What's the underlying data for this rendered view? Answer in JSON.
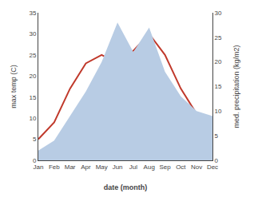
{
  "chart_data": {
    "type": "line",
    "categories": [
      "Jan",
      "Feb",
      "Mar",
      "Apr",
      "May",
      "Jun",
      "Jul",
      "Aug",
      "Sep",
      "Oct",
      "Nov",
      "Dec"
    ],
    "series": [
      {
        "type": "line",
        "color": "#c0392b",
        "values": [
          5,
          9,
          17,
          23,
          25,
          23,
          26,
          30,
          25,
          17,
          11,
          7
        ]
      },
      {
        "type": "area",
        "color": "#b8cce4",
        "axis": "y2",
        "values": [
          2,
          4,
          9,
          14,
          20,
          28,
          22,
          27,
          18,
          13,
          10,
          9
        ]
      }
    ],
    "xlabel": "date (month)",
    "ylabel": "max temp (C)",
    "y2label": "med. precipitation (kg/m2)",
    "ylim": [
      0,
      35
    ],
    "yticks": [
      0,
      5,
      10,
      15,
      20,
      25,
      30,
      35
    ],
    "y2lim": [
      0,
      30
    ],
    "y2ticks": [
      0,
      5,
      10,
      15,
      20,
      25,
      30
    ],
    "grid": false
  }
}
